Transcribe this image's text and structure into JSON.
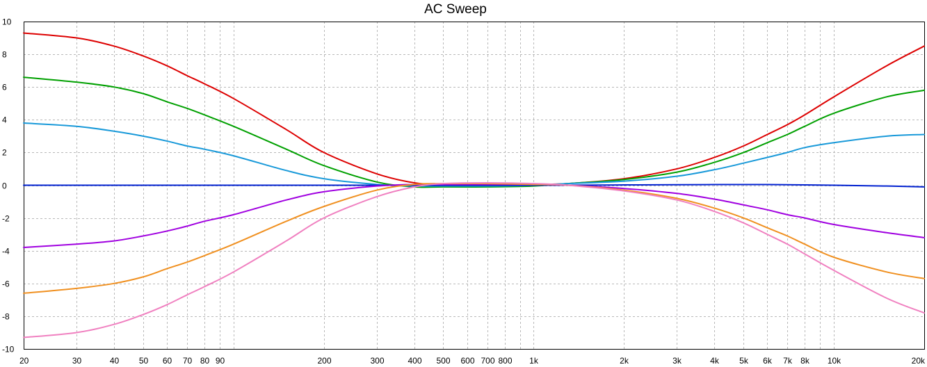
{
  "chart_data": {
    "type": "line",
    "title": "AC Sweep",
    "x_scale": "log",
    "xlim": [
      20,
      20000
    ],
    "ylim": [
      -10,
      10
    ],
    "grid": true,
    "x_ticks": [
      {
        "value": 20,
        "label": "20"
      },
      {
        "value": 30,
        "label": "30"
      },
      {
        "value": 40,
        "label": "40"
      },
      {
        "value": 50,
        "label": "50"
      },
      {
        "value": 60,
        "label": "60"
      },
      {
        "value": 70,
        "label": "70"
      },
      {
        "value": 80,
        "label": "80"
      },
      {
        "value": 90,
        "label": "90"
      },
      {
        "value": 100,
        "label": ""
      },
      {
        "value": 200,
        "label": "200"
      },
      {
        "value": 300,
        "label": "300"
      },
      {
        "value": 400,
        "label": "400"
      },
      {
        "value": 500,
        "label": "500"
      },
      {
        "value": 600,
        "label": "600"
      },
      {
        "value": 700,
        "label": "700"
      },
      {
        "value": 800,
        "label": "800"
      },
      {
        "value": 900,
        "label": ""
      },
      {
        "value": 1000,
        "label": "1k"
      },
      {
        "value": 2000,
        "label": "2k"
      },
      {
        "value": 3000,
        "label": "3k"
      },
      {
        "value": 4000,
        "label": "4k"
      },
      {
        "value": 5000,
        "label": "5k"
      },
      {
        "value": 6000,
        "label": "6k"
      },
      {
        "value": 7000,
        "label": "7k"
      },
      {
        "value": 8000,
        "label": "8k"
      },
      {
        "value": 9000,
        "label": ""
      },
      {
        "value": 10000,
        "label": "10k"
      },
      {
        "value": 20000,
        "label": "20k"
      }
    ],
    "y_ticks": [
      {
        "value": 10,
        "label": "10"
      },
      {
        "value": 8,
        "label": "8"
      },
      {
        "value": 6,
        "label": "6"
      },
      {
        "value": 4,
        "label": "4"
      },
      {
        "value": 2,
        "label": "2"
      },
      {
        "value": 0,
        "label": "0"
      },
      {
        "value": -2,
        "label": "-2"
      },
      {
        "value": -4,
        "label": "-4"
      },
      {
        "value": -6,
        "label": "-6"
      },
      {
        "value": -8,
        "label": "-8"
      },
      {
        "value": -10,
        "label": "-10"
      }
    ],
    "x": [
      20,
      30,
      40,
      50,
      60,
      70,
      80,
      100,
      150,
      200,
      300,
      400,
      500,
      700,
      1000,
      1300,
      2000,
      3000,
      4000,
      5000,
      6000,
      7000,
      8000,
      10000,
      15000,
      20000
    ],
    "series": [
      {
        "color": "#dd0000",
        "values": [
          9.3,
          9.0,
          8.5,
          7.9,
          7.3,
          6.7,
          6.2,
          5.3,
          3.4,
          2.0,
          0.7,
          0.15,
          0.05,
          0.05,
          0.05,
          0.1,
          0.4,
          1.0,
          1.7,
          2.4,
          3.1,
          3.7,
          4.3,
          5.4,
          7.3,
          8.5
        ]
      },
      {
        "color": "#00a000",
        "values": [
          6.6,
          6.3,
          6.0,
          5.6,
          5.1,
          4.7,
          4.3,
          3.6,
          2.2,
          1.2,
          0.2,
          -0.1,
          -0.1,
          -0.1,
          -0.05,
          0.1,
          0.35,
          0.8,
          1.4,
          2.0,
          2.6,
          3.1,
          3.6,
          4.4,
          5.4,
          5.8
        ]
      },
      {
        "color": "#1899d9",
        "values": [
          3.8,
          3.6,
          3.3,
          3.0,
          2.7,
          2.4,
          2.2,
          1.8,
          0.9,
          0.4,
          0.05,
          -0.05,
          -0.05,
          -0.05,
          0.0,
          0.1,
          0.25,
          0.55,
          0.95,
          1.35,
          1.7,
          2.0,
          2.3,
          2.6,
          3.0,
          3.1
        ]
      },
      {
        "color": "#0020d0",
        "values": [
          0.0,
          0.0,
          0.0,
          0.0,
          0.0,
          0.0,
          0.0,
          0.0,
          0.0,
          0.0,
          0.0,
          0.0,
          0.0,
          0.0,
          0.0,
          0.0,
          0.02,
          0.03,
          0.04,
          0.04,
          0.04,
          0.03,
          0.02,
          0.0,
          -0.05,
          -0.1
        ]
      },
      {
        "color": "#a000e0",
        "values": [
          -3.8,
          -3.6,
          -3.4,
          -3.1,
          -2.8,
          -2.5,
          -2.2,
          -1.8,
          -0.9,
          -0.4,
          -0.05,
          0.05,
          0.05,
          0.05,
          0.05,
          0.0,
          -0.2,
          -0.5,
          -0.85,
          -1.2,
          -1.5,
          -1.8,
          -2.0,
          -2.4,
          -2.9,
          -3.2
        ]
      },
      {
        "color": "#f09020",
        "values": [
          -6.6,
          -6.3,
          -6.0,
          -5.6,
          -5.1,
          -4.7,
          -4.3,
          -3.6,
          -2.2,
          -1.3,
          -0.3,
          0.05,
          0.1,
          0.1,
          0.05,
          0.0,
          -0.3,
          -0.8,
          -1.4,
          -2.0,
          -2.6,
          -3.1,
          -3.6,
          -4.4,
          -5.3,
          -5.7
        ]
      },
      {
        "color": "#f080c0",
        "values": [
          -9.3,
          -9.0,
          -8.5,
          -7.9,
          -7.3,
          -6.7,
          -6.2,
          -5.3,
          -3.4,
          -2.0,
          -0.7,
          -0.1,
          0.1,
          0.15,
          0.1,
          0.0,
          -0.35,
          -0.9,
          -1.6,
          -2.3,
          -3.0,
          -3.6,
          -4.2,
          -5.2,
          -6.9,
          -7.8
        ]
      }
    ]
  }
}
